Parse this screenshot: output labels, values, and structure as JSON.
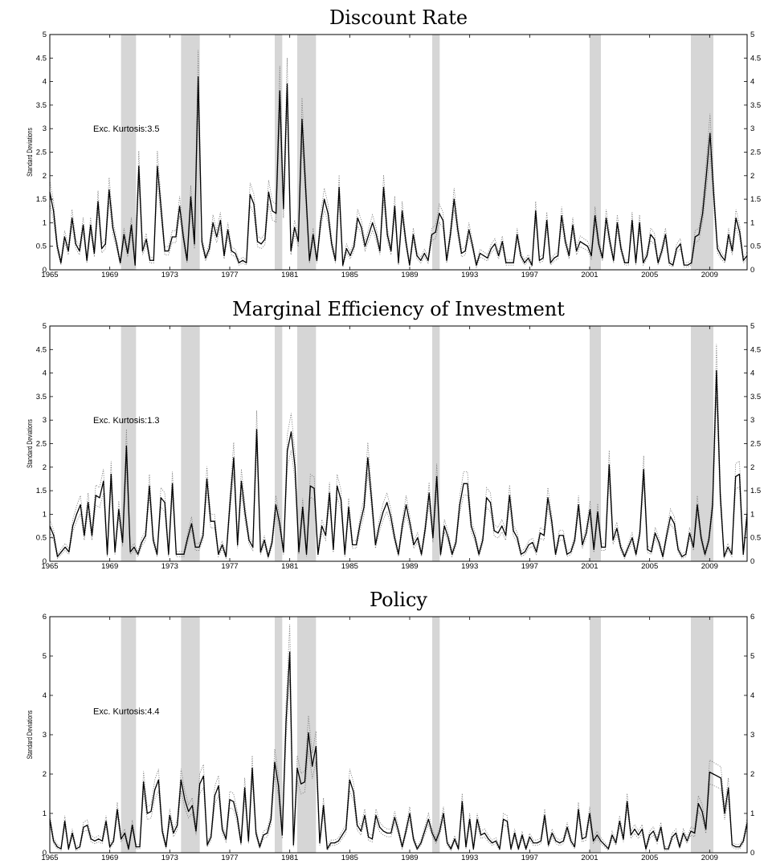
{
  "chart_data": [
    {
      "type": "line",
      "title": "Discount Rate",
      "ylabel": "Standard Deviations",
      "annotation": "Exc. Kurtosis:3.5",
      "ylim": [
        0,
        5
      ],
      "yticks": [
        "0",
        "0.5",
        "1",
        "1.5",
        "2",
        "2.5",
        "3",
        "3.5",
        "4",
        "4.5",
        "5"
      ],
      "xlim": [
        1965.0,
        2011.5
      ],
      "xticks": [
        "1965",
        "1969",
        "1973",
        "1977",
        "1981",
        "1985",
        "1989",
        "1993",
        "1997",
        "2001",
        "2005",
        "2009"
      ],
      "recession_bands": [
        [
          1969.75,
          1970.75
        ],
        [
          1973.75,
          1975.0
        ],
        [
          1980.0,
          1980.5
        ],
        [
          1981.5,
          1982.75
        ],
        [
          1990.5,
          1991.0
        ],
        [
          2001.0,
          2001.75
        ],
        [
          2007.75,
          2009.25
        ]
      ],
      "series": [
        {
          "style": "solid",
          "values": [
            1.65,
            1.25,
            0.5,
            0.15,
            0.7,
            0.4,
            1.1,
            0.55,
            0.4,
            0.95,
            0.2,
            0.95,
            0.35,
            1.45,
            0.45,
            0.55,
            1.7,
            0.9,
            0.55,
            0.15,
            0.75,
            0.35,
            0.95,
            0.1,
            2.2,
            0.4,
            0.65,
            0.2,
            0.2,
            2.2,
            1.3,
            0.4,
            0.4,
            0.7,
            0.7,
            1.35,
            0.7,
            0.2,
            1.55,
            0.55,
            4.1,
            0.6,
            0.25,
            0.45,
            1.0,
            0.7,
            1.05,
            0.3,
            0.85,
            0.4,
            0.35,
            0.15,
            0.2,
            0.15,
            1.6,
            1.4,
            0.6,
            0.55,
            0.65,
            1.65,
            1.25,
            1.2,
            3.8,
            1.3,
            3.95,
            0.4,
            0.9,
            0.6,
            3.2,
            1.7,
            0.2,
            0.75,
            0.2,
            1.0,
            1.5,
            1.2,
            0.55,
            0.2,
            1.75,
            0.1,
            0.45,
            0.3,
            0.5,
            1.1,
            0.9,
            0.5,
            0.75,
            1.0,
            0.75,
            0.4,
            1.75,
            0.75,
            0.4,
            1.35,
            0.15,
            1.25,
            0.6,
            0.1,
            0.75,
            0.3,
            0.2,
            0.35,
            0.2,
            0.75,
            0.8,
            1.2,
            1.05,
            0.2,
            0.75,
            1.5,
            0.85,
            0.35,
            0.4,
            0.85,
            0.5,
            0.1,
            0.35,
            0.3,
            0.25,
            0.45,
            0.55,
            0.3,
            0.6,
            0.15,
            0.15,
            0.15,
            0.75,
            0.3,
            0.15,
            0.25,
            0.1,
            1.25,
            0.2,
            0.25,
            1.05,
            0.15,
            0.25,
            0.3,
            1.15,
            0.6,
            0.3,
            0.95,
            0.4,
            0.6,
            0.55,
            0.5,
            0.3,
            1.15,
            0.55,
            0.25,
            1.1,
            0.6,
            0.2,
            1.0,
            0.45,
            0.15,
            0.15,
            1.05,
            0.15,
            1.0,
            0.15,
            0.3,
            0.75,
            0.65,
            0.15,
            0.4,
            0.75,
            0.15,
            0.1,
            0.45,
            0.55,
            0.1,
            0.1,
            0.15,
            0.7,
            0.75,
            1.2,
            2.0,
            2.9,
            1.6,
            0.45,
            0.3,
            0.2,
            0.75,
            0.4,
            1.1,
            0.8,
            0.2,
            0.3
          ]
        }
      ]
    },
    {
      "type": "line",
      "title": "Marginal Efficiency of Investment",
      "ylabel": "Standard Deviations",
      "annotation": "Exc. Kurtosis:1.3",
      "ylim": [
        0,
        5
      ],
      "yticks": [
        "0",
        "0.5",
        "1",
        "1.5",
        "2",
        "2.5",
        "3",
        "3.5",
        "4",
        "4.5",
        "5"
      ],
      "xlim": [
        1965.0,
        2011.5
      ],
      "xticks": [
        "1965",
        "1969",
        "1973",
        "1977",
        "1981",
        "1985",
        "1989",
        "1993",
        "1997",
        "2001",
        "2005",
        "2009"
      ],
      "recession_bands": [
        [
          1969.75,
          1970.75
        ],
        [
          1973.75,
          1975.0
        ],
        [
          1980.0,
          1980.5
        ],
        [
          1981.5,
          1982.75
        ],
        [
          1990.5,
          1991.0
        ],
        [
          2001.0,
          2001.75
        ],
        [
          2007.75,
          2009.25
        ]
      ],
      "series": [
        {
          "style": "solid",
          "values": [
            0.75,
            0.55,
            0.1,
            0.2,
            0.3,
            0.2,
            0.75,
            1.0,
            1.2,
            0.55,
            1.25,
            0.55,
            1.4,
            1.35,
            1.7,
            0.15,
            1.85,
            0.2,
            1.1,
            0.4,
            2.45,
            0.2,
            0.3,
            0.15,
            0.4,
            0.55,
            1.6,
            0.45,
            0.15,
            1.35,
            1.25,
            0.15,
            1.65,
            0.15,
            0.15,
            0.15,
            0.5,
            0.8,
            0.3,
            0.3,
            0.55,
            1.75,
            0.85,
            0.85,
            0.15,
            0.35,
            0.1,
            1.2,
            2.2,
            0.35,
            1.7,
            1.0,
            0.45,
            0.3,
            2.8,
            0.2,
            0.45,
            0.1,
            0.4,
            1.2,
            0.8,
            0.2,
            2.35,
            2.75,
            2.0,
            0.2,
            1.15,
            0.15,
            1.6,
            1.55,
            0.15,
            0.75,
            0.55,
            1.45,
            0.25,
            1.6,
            1.3,
            0.15,
            1.15,
            0.35,
            0.35,
            0.8,
            1.15,
            2.2,
            1.3,
            0.35,
            0.75,
            1.05,
            1.25,
            0.95,
            0.5,
            0.15,
            0.75,
            1.2,
            0.8,
            0.35,
            0.5,
            0.15,
            0.7,
            1.45,
            0.5,
            1.8,
            0.15,
            0.75,
            0.5,
            0.15,
            0.4,
            1.2,
            1.65,
            1.65,
            0.75,
            0.5,
            0.15,
            0.45,
            1.35,
            1.25,
            0.65,
            0.6,
            0.75,
            0.55,
            1.4,
            0.65,
            0.5,
            0.15,
            0.2,
            0.35,
            0.4,
            0.2,
            0.6,
            0.55,
            1.35,
            0.85,
            0.15,
            0.55,
            0.55,
            0.15,
            0.2,
            0.45,
            1.2,
            0.35,
            0.6,
            1.1,
            0.25,
            1.05,
            0.3,
            0.3,
            2.05,
            0.45,
            0.7,
            0.3,
            0.1,
            0.3,
            0.5,
            0.15,
            0.6,
            1.95,
            0.25,
            0.2,
            0.6,
            0.4,
            0.1,
            0.55,
            0.95,
            0.8,
            0.25,
            0.1,
            0.15,
            0.6,
            0.3,
            1.2,
            0.5,
            0.15,
            0.45,
            1.2,
            4.05,
            1.4,
            0.1,
            0.3,
            0.15,
            1.8,
            1.85,
            0.15,
            1.0
          ]
        }
      ]
    },
    {
      "type": "line",
      "title": "Policy",
      "ylabel": "Standard Deviations",
      "annotation": "Exc. Kurtosis:4.4",
      "ylim": [
        0,
        6
      ],
      "yticks": [
        "0",
        "1",
        "2",
        "3",
        "4",
        "5",
        "6"
      ],
      "xlim": [
        1965.0,
        2011.5
      ],
      "xticks": [
        "1965",
        "1969",
        "1973",
        "1977",
        "1981",
        "1985",
        "1989",
        "1993",
        "1997",
        "2001",
        "2005",
        "2009"
      ],
      "recession_bands": [
        [
          1969.75,
          1970.75
        ],
        [
          1973.75,
          1975.0
        ],
        [
          1980.0,
          1980.5
        ],
        [
          1981.5,
          1982.75
        ],
        [
          1990.5,
          1991.0
        ],
        [
          2001.0,
          2001.75
        ],
        [
          2007.75,
          2009.25
        ]
      ],
      "series": [
        {
          "style": "solid",
          "values": [
            0.85,
            0.3,
            0.15,
            0.1,
            0.8,
            0.1,
            0.5,
            0.1,
            0.15,
            0.65,
            0.7,
            0.35,
            0.3,
            0.35,
            0.3,
            0.8,
            0.15,
            0.3,
            1.1,
            0.35,
            0.5,
            0.1,
            0.7,
            0.15,
            0.15,
            1.8,
            1.0,
            1.05,
            1.6,
            1.85,
            0.55,
            0.15,
            0.95,
            0.5,
            0.7,
            1.85,
            1.35,
            1.05,
            1.2,
            0.55,
            1.75,
            1.95,
            0.2,
            0.4,
            1.45,
            1.7,
            0.6,
            0.35,
            1.35,
            1.3,
            0.9,
            0.25,
            1.65,
            0.3,
            2.15,
            0.5,
            0.15,
            0.45,
            0.5,
            0.85,
            2.3,
            1.7,
            0.45,
            3.3,
            5.1,
            0.2,
            2.15,
            1.75,
            1.8,
            3.05,
            2.2,
            2.7,
            0.25,
            1.2,
            0.1,
            0.25,
            0.25,
            0.3,
            0.45,
            0.6,
            1.85,
            1.55,
            0.7,
            0.55,
            0.95,
            0.4,
            0.35,
            0.95,
            0.65,
            0.55,
            0.5,
            0.5,
            0.9,
            0.55,
            0.15,
            0.55,
            1.0,
            0.35,
            0.1,
            0.25,
            0.55,
            0.85,
            0.5,
            0.3,
            0.55,
            1.0,
            0.25,
            0.1,
            0.35,
            0.1,
            1.3,
            0.15,
            0.85,
            0.1,
            0.85,
            0.45,
            0.5,
            0.35,
            0.25,
            0.3,
            0.1,
            0.85,
            0.8,
            0.1,
            0.5,
            0.1,
            0.45,
            0.1,
            0.4,
            0.25,
            0.25,
            0.3,
            0.95,
            0.2,
            0.5,
            0.3,
            0.25,
            0.3,
            0.65,
            0.3,
            0.15,
            1.1,
            0.35,
            0.4,
            1.0,
            0.3,
            0.45,
            0.3,
            0.2,
            0.1,
            0.45,
            0.25,
            0.8,
            0.35,
            1.3,
            0.45,
            0.6,
            0.45,
            0.6,
            0.1,
            0.45,
            0.55,
            0.3,
            0.65,
            0.1,
            0.1,
            0.4,
            0.5,
            0.15,
            0.5,
            0.3,
            0.55,
            0.5,
            1.25,
            1.05,
            0.6,
            2.05,
            2.0,
            1.95,
            1.9,
            1.0,
            1.65,
            0.2,
            0.15,
            0.15,
            0.3,
            0.75
          ]
        }
      ]
    }
  ]
}
